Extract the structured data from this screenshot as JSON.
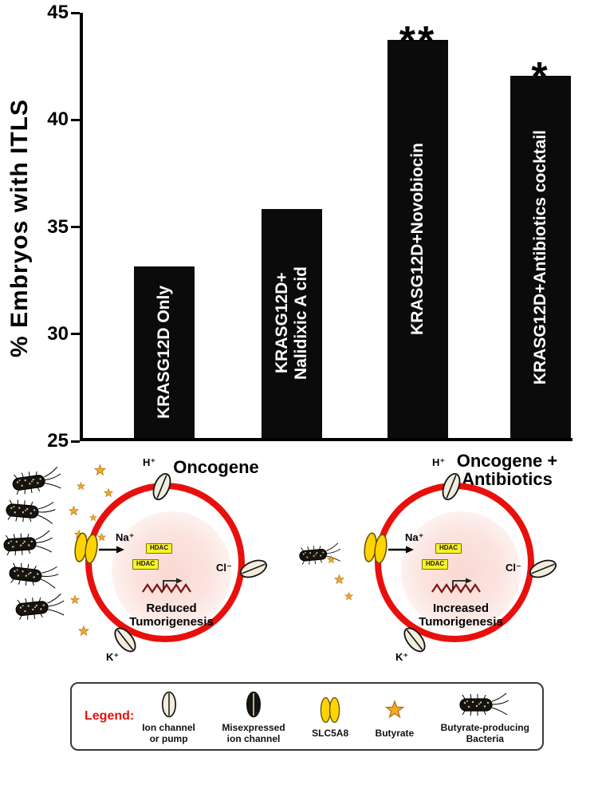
{
  "chart_data": {
    "type": "bar",
    "categories": [
      "KRASG12D Only",
      "KRASG12D+ Nalidixic A cid",
      "KRASG12D+Novobiocin",
      "KRASG12D+Antibiotics cocktail"
    ],
    "values": [
      33.0,
      35.7,
      43.6,
      41.9
    ],
    "bar_label_lines": [
      [
        "KRASG12D Only"
      ],
      [
        "KRASG12D+",
        "Nalidixic A cid"
      ],
      [
        "KRASG12D+Novobiocin"
      ],
      [
        "KRASG12D+Antibiotics cocktail"
      ]
    ],
    "significance": [
      "",
      "",
      "**",
      "*"
    ],
    "title": "",
    "xlabel": "",
    "ylabel": "% Embryos with ITLS",
    "ylim": [
      25,
      45
    ],
    "yticks": [
      25,
      30,
      35,
      40,
      45
    ],
    "grid": false,
    "legend_position": "none",
    "bar_color": "#0b0b0b",
    "bar_label_style": "vertical-white-inside"
  },
  "diagram": {
    "cells": [
      {
        "title_lines": [
          "Oncogene"
        ],
        "result_lines": [
          "Reduced",
          "Tumorigenesis"
        ],
        "ion_labels": {
          "top": "H⁺",
          "left": "Na⁺",
          "right": "Cl⁻",
          "bottom": "K⁺"
        },
        "hdac_labels": [
          "HDAC",
          "HDAC"
        ],
        "bacteria_count": 5,
        "butyrate_star_count": 9
      },
      {
        "title_lines": [
          "Oncogene +",
          "Antibiotics"
        ],
        "result_lines": [
          "Increased",
          "Tumorigenesis"
        ],
        "ion_labels": {
          "top": "H⁺",
          "left": "Na⁺",
          "right": "Cl⁻",
          "bottom": "K⁺"
        },
        "hdac_labels": [
          "HDAC",
          "HDAC"
        ],
        "bacteria_count": 1,
        "butyrate_star_count": 3
      }
    ],
    "legend": {
      "title": "Legend:",
      "title_color": "#e8100c",
      "items": [
        {
          "icon": "ion-channel-icon",
          "label_lines": [
            "Ion channel",
            "or pump"
          ]
        },
        {
          "icon": "misexpressed-ion-channel-icon",
          "label_lines": [
            "Misexpressed",
            "ion channel"
          ]
        },
        {
          "icon": "slc5a8-icon",
          "label_lines": [
            "SLC5A8"
          ]
        },
        {
          "icon": "butyrate-icon",
          "label_lines": [
            "Butyrate"
          ]
        },
        {
          "icon": "bacteria-icon",
          "label_lines": [
            "Butyrate-producing",
            "Bacteria"
          ]
        }
      ]
    },
    "colors": {
      "membrane": "#e8100c",
      "slc5a8": "#ffd400",
      "butyrate": "#f7a823",
      "hdac_bg": "#f8f32b",
      "bar": "#0b0b0b"
    }
  }
}
